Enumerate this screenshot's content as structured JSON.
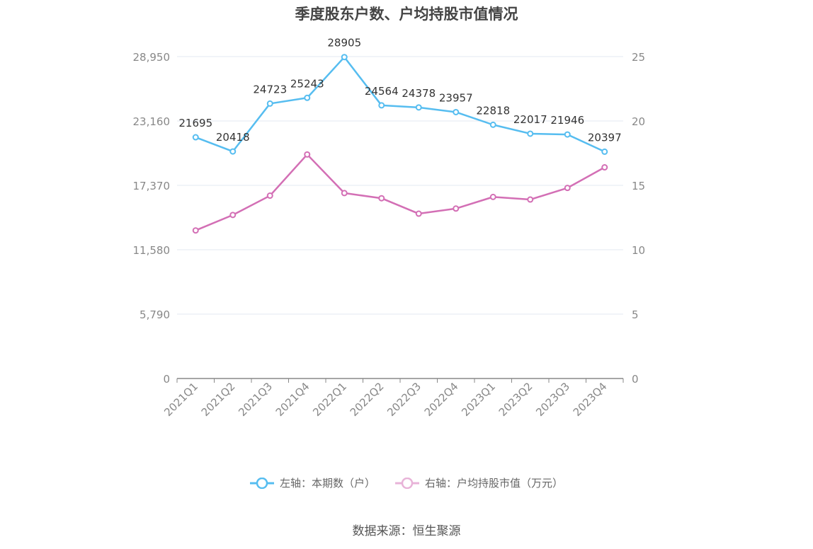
{
  "chart_data": {
    "type": "line",
    "title": "季度股东户数、户均持股市值情况",
    "categories": [
      "2021Q1",
      "2021Q2",
      "2021Q3",
      "2021Q4",
      "2022Q1",
      "2022Q2",
      "2022Q3",
      "2022Q4",
      "2023Q1",
      "2023Q2",
      "2023Q3",
      "2023Q4"
    ],
    "left_axis": {
      "ticks": [
        "0",
        "5,790",
        "11,580",
        "17,370",
        "23,160",
        "28,950"
      ],
      "ylim": [
        0,
        28950
      ]
    },
    "right_axis": {
      "ticks": [
        "0",
        "5",
        "10",
        "15",
        "20",
        "25"
      ],
      "ylim": [
        0,
        25
      ]
    },
    "series": [
      {
        "name": "左轴：本期数（户）",
        "axis": "left",
        "color": "#56bdf0",
        "values": [
          21695,
          20418,
          24723,
          25243,
          28905,
          24564,
          24378,
          23957,
          22818,
          22017,
          21946,
          20397
        ],
        "labels": [
          "21695",
          "20418",
          "24723",
          "25243",
          "28905",
          "24564",
          "24378",
          "23957",
          "22818",
          "22017",
          "21946",
          "20397"
        ]
      },
      {
        "name": "右轴：户均持股市值（万元）",
        "axis": "right",
        "color": "#d36fb5",
        "values": [
          11.5,
          12.7,
          14.2,
          17.4,
          14.4,
          14.0,
          12.8,
          13.2,
          14.1,
          13.9,
          14.8,
          16.4
        ]
      }
    ],
    "grid": true,
    "legend_position": "bottom"
  },
  "source": "数据来源：恒生聚源"
}
